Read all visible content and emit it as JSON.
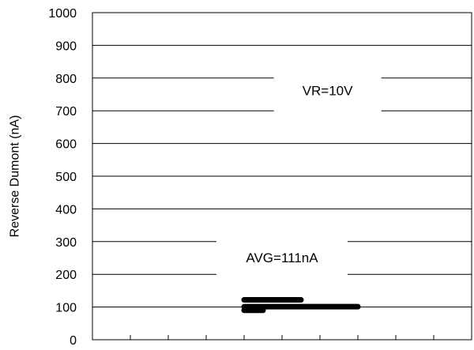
{
  "chart_data": {
    "type": "line",
    "title": "",
    "xlabel": "",
    "ylabel": "Reverse Dumont (nA)",
    "ylim": [
      0,
      1000
    ],
    "xlim": [
      0,
      10
    ],
    "yticks": [
      0,
      100,
      200,
      300,
      400,
      500,
      600,
      700,
      800,
      900,
      1000
    ],
    "xticks": [
      1,
      2,
      3,
      4,
      5,
      6,
      7,
      8,
      9
    ],
    "grid": true,
    "legend": "none",
    "series_color": "#000000",
    "series": [
      {
        "x": [
          4.0,
          5.5
        ],
        "y": [
          122,
          122
        ]
      },
      {
        "x": [
          4.0,
          7.0
        ],
        "y": [
          101,
          101
        ]
      },
      {
        "x": [
          4.0,
          4.5
        ],
        "y": [
          90,
          90
        ]
      }
    ],
    "annotations": [
      {
        "text": "VR=10V",
        "x": 6.2,
        "y": 762
      },
      {
        "text": "AVG=111nA",
        "x": 5.0,
        "y": 251
      }
    ]
  }
}
